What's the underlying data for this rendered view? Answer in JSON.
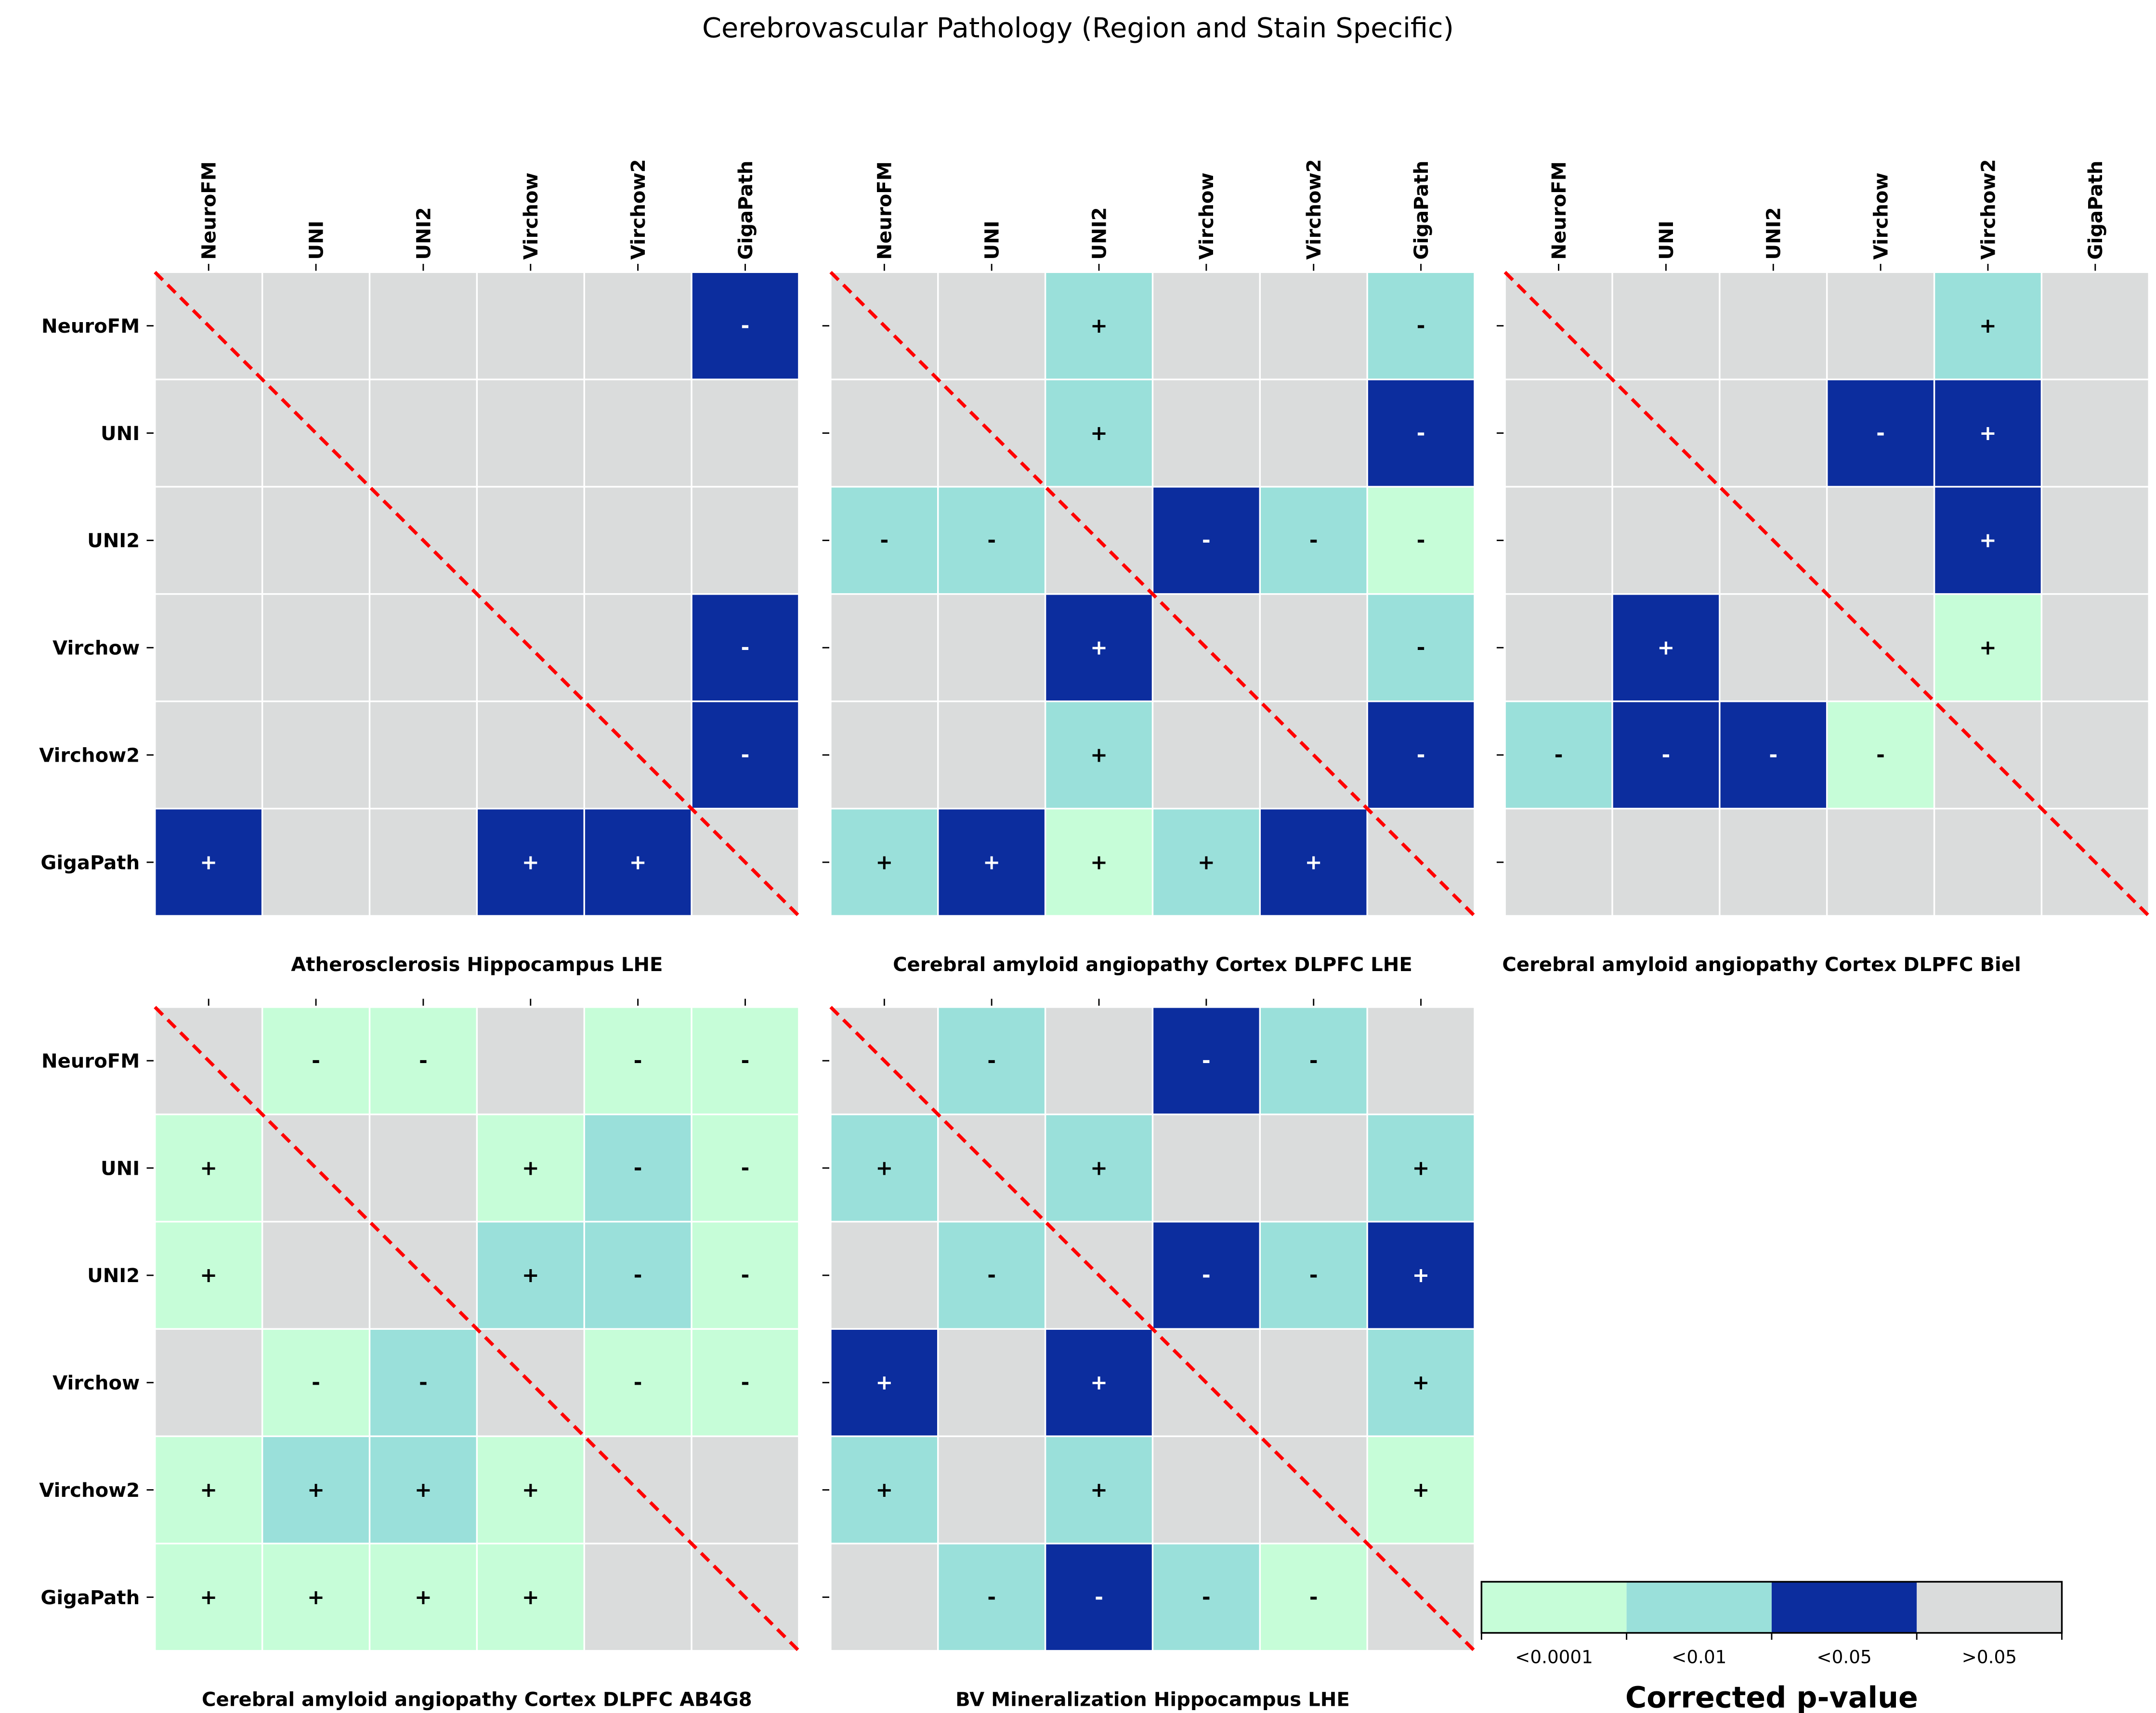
{
  "chart_data": {
    "type": "heatmap",
    "title": "Cerebrovascular Pathology (Region and Stain Specific)",
    "models": [
      "NeuroFM",
      "UNI",
      "UNI2",
      "Virchow",
      "Virchow2",
      "GigaPath"
    ],
    "legend": {
      "title": "Corrected p-value",
      "categories": [
        "<0.0001",
        "<0.01",
        "<0.05",
        ">0.05"
      ],
      "colors": {
        "<0.0001": "#c6fdd8",
        "<0.01": "#9ae0da",
        "<0.05": "#0c2d9e",
        ">0.05": "#dadcdc"
      },
      "placement": "bottom-right"
    },
    "diagonal_color": "#ff0000",
    "panels": [
      {
        "title": "Atherosclerosis Hippocampus LHE",
        "p": [
          [
            ">0.05",
            ">0.05",
            ">0.05",
            ">0.05",
            ">0.05",
            "<0.05"
          ],
          [
            ">0.05",
            ">0.05",
            ">0.05",
            ">0.05",
            ">0.05",
            ">0.05"
          ],
          [
            ">0.05",
            ">0.05",
            ">0.05",
            ">0.05",
            ">0.05",
            ">0.05"
          ],
          [
            ">0.05",
            ">0.05",
            ">0.05",
            ">0.05",
            ">0.05",
            "<0.05"
          ],
          [
            ">0.05",
            ">0.05",
            ">0.05",
            ">0.05",
            ">0.05",
            "<0.05"
          ],
          [
            "<0.05",
            ">0.05",
            ">0.05",
            "<0.05",
            "<0.05",
            ">0.05"
          ]
        ],
        "sign": [
          [
            "",
            "",
            "",
            "",
            "",
            "-"
          ],
          [
            "",
            "",
            "",
            "",
            "",
            ""
          ],
          [
            "",
            "",
            "",
            "",
            "",
            ""
          ],
          [
            "",
            "",
            "",
            "",
            "",
            "-"
          ],
          [
            "",
            "",
            "",
            "",
            "",
            "-"
          ],
          [
            "+",
            "",
            "",
            "+",
            "+",
            ""
          ]
        ]
      },
      {
        "title": "Cerebral amyloid angiopathy Cortex DLPFC LHE",
        "p": [
          [
            ">0.05",
            ">0.05",
            "<0.01",
            ">0.05",
            ">0.05",
            "<0.01"
          ],
          [
            ">0.05",
            ">0.05",
            "<0.01",
            ">0.05",
            ">0.05",
            "<0.05"
          ],
          [
            "<0.01",
            "<0.01",
            ">0.05",
            "<0.05",
            "<0.01",
            "<0.0001"
          ],
          [
            ">0.05",
            ">0.05",
            "<0.05",
            ">0.05",
            ">0.05",
            "<0.01"
          ],
          [
            ">0.05",
            ">0.05",
            "<0.01",
            ">0.05",
            ">0.05",
            "<0.05"
          ],
          [
            "<0.01",
            "<0.05",
            "<0.0001",
            "<0.01",
            "<0.05",
            ">0.05"
          ]
        ],
        "sign": [
          [
            "",
            "",
            "+",
            "",
            "",
            "-"
          ],
          [
            "",
            "",
            "+",
            "",
            "",
            "-"
          ],
          [
            "-",
            "-",
            "",
            "-",
            "-",
            "-"
          ],
          [
            "",
            "",
            "+",
            "",
            "",
            "-"
          ],
          [
            "",
            "",
            "+",
            "",
            "",
            "-"
          ],
          [
            "+",
            "+",
            "+",
            "+",
            "+",
            ""
          ]
        ]
      },
      {
        "title": "Cerebral amyloid angiopathy Cortex DLPFC Biel",
        "p": [
          [
            ">0.05",
            ">0.05",
            ">0.05",
            ">0.05",
            "<0.01",
            ">0.05"
          ],
          [
            ">0.05",
            ">0.05",
            ">0.05",
            "<0.05",
            "<0.05",
            ">0.05"
          ],
          [
            ">0.05",
            ">0.05",
            ">0.05",
            ">0.05",
            "<0.05",
            ">0.05"
          ],
          [
            ">0.05",
            "<0.05",
            ">0.05",
            ">0.05",
            "<0.0001",
            ">0.05"
          ],
          [
            "<0.01",
            "<0.05",
            "<0.05",
            "<0.0001",
            ">0.05",
            ">0.05"
          ],
          [
            ">0.05",
            ">0.05",
            ">0.05",
            ">0.05",
            ">0.05",
            ">0.05"
          ]
        ],
        "sign": [
          [
            "",
            "",
            "",
            "",
            "+",
            ""
          ],
          [
            "",
            "",
            "",
            "-",
            "+",
            ""
          ],
          [
            "",
            "",
            "",
            "",
            "+",
            ""
          ],
          [
            "",
            "+",
            "",
            "",
            "+",
            ""
          ],
          [
            "-",
            "-",
            "-",
            "-",
            "",
            ""
          ],
          [
            "",
            "",
            "",
            "",
            "",
            ""
          ]
        ]
      },
      {
        "title": "Cerebral amyloid angiopathy Cortex DLPFC AB4G8",
        "p": [
          [
            ">0.05",
            "<0.0001",
            "<0.0001",
            ">0.05",
            "<0.0001",
            "<0.0001"
          ],
          [
            "<0.0001",
            ">0.05",
            ">0.05",
            "<0.0001",
            "<0.01",
            "<0.0001"
          ],
          [
            "<0.0001",
            ">0.05",
            ">0.05",
            "<0.01",
            "<0.01",
            "<0.0001"
          ],
          [
            ">0.05",
            "<0.0001",
            "<0.01",
            ">0.05",
            "<0.0001",
            "<0.0001"
          ],
          [
            "<0.0001",
            "<0.01",
            "<0.01",
            "<0.0001",
            ">0.05",
            ">0.05"
          ],
          [
            "<0.0001",
            "<0.0001",
            "<0.0001",
            "<0.0001",
            ">0.05",
            ">0.05"
          ]
        ],
        "sign": [
          [
            "",
            "-",
            "-",
            "",
            "-",
            "-"
          ],
          [
            "+",
            "",
            "",
            "+",
            "-",
            "-"
          ],
          [
            "+",
            "",
            "",
            "+",
            "-",
            "-"
          ],
          [
            "",
            "-",
            "-",
            "",
            "-",
            "-"
          ],
          [
            "+",
            "+",
            "+",
            "+",
            "",
            ""
          ],
          [
            "+",
            "+",
            "+",
            "+",
            "",
            ""
          ]
        ]
      },
      {
        "title": "BV Mineralization Hippocampus LHE",
        "p": [
          [
            ">0.05",
            "<0.01",
            ">0.05",
            "<0.05",
            "<0.01",
            ">0.05"
          ],
          [
            "<0.01",
            ">0.05",
            "<0.01",
            ">0.05",
            ">0.05",
            "<0.01"
          ],
          [
            ">0.05",
            "<0.01",
            ">0.05",
            "<0.05",
            "<0.01",
            "<0.05"
          ],
          [
            "<0.05",
            ">0.05",
            "<0.05",
            ">0.05",
            ">0.05",
            "<0.01"
          ],
          [
            "<0.01",
            ">0.05",
            "<0.01",
            ">0.05",
            ">0.05",
            "<0.0001"
          ],
          [
            ">0.05",
            "<0.01",
            "<0.05",
            "<0.01",
            "<0.0001",
            ">0.05"
          ]
        ],
        "sign": [
          [
            "",
            "-",
            "",
            "-",
            "-",
            ""
          ],
          [
            "+",
            "",
            "+",
            "",
            "",
            "+"
          ],
          [
            "",
            "-",
            "",
            "-",
            "-",
            "+"
          ],
          [
            "+",
            "",
            "+",
            "",
            "",
            "+"
          ],
          [
            "+",
            "",
            "+",
            "",
            "",
            "+"
          ],
          [
            "",
            "-",
            "-",
            "-",
            "-",
            ""
          ]
        ]
      }
    ]
  }
}
